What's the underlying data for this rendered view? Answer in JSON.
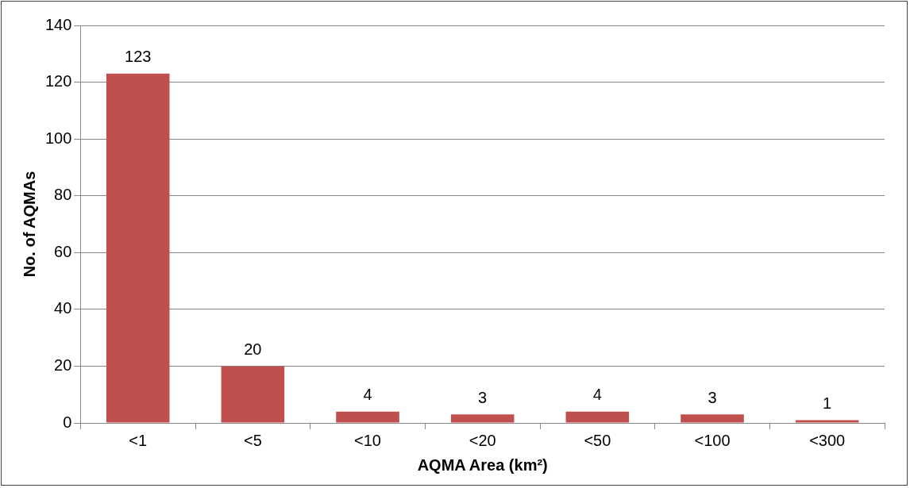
{
  "chart_data": {
    "type": "bar",
    "xlabel": "AQMA Area (km²)",
    "ylabel": "No. of AQMAs",
    "categories": [
      "<1",
      "<5",
      "<10",
      "<20",
      "<50",
      "<100",
      "<300"
    ],
    "values": [
      123,
      20,
      4,
      3,
      4,
      3,
      1
    ],
    "color": "#c0504d",
    "ylim": [
      0,
      140
    ],
    "yticks": [
      0,
      20,
      40,
      60,
      80,
      100,
      120,
      140
    ],
    "grid": "y",
    "data_labels": true
  }
}
